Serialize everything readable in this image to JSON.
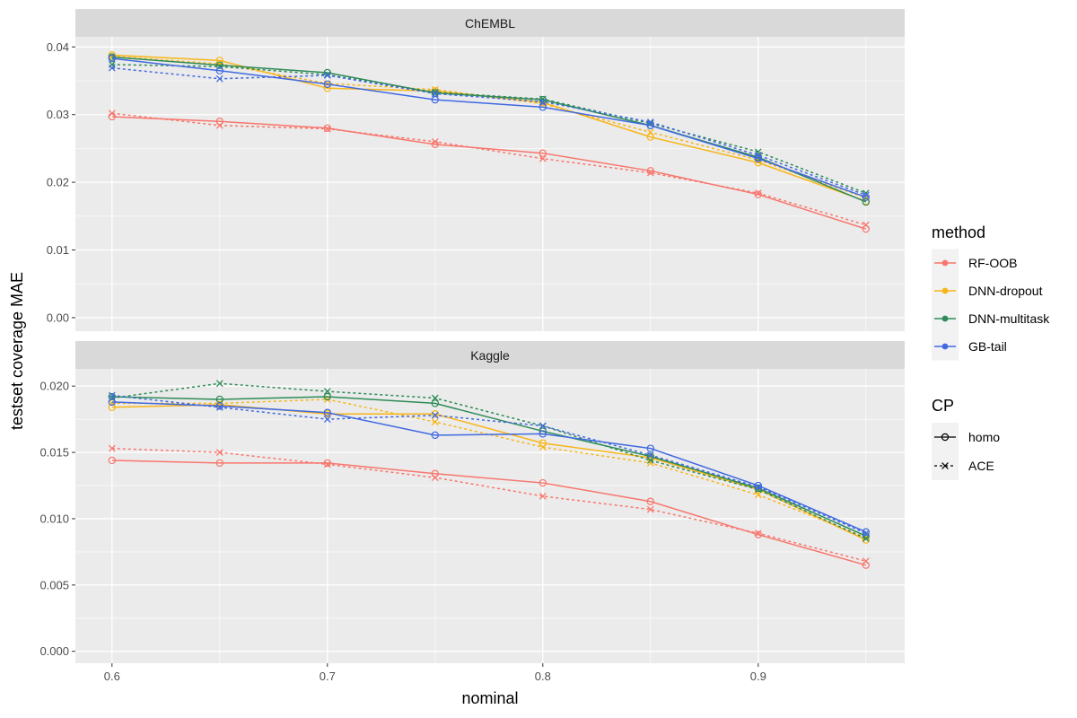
{
  "chart_data": {
    "type": "line",
    "xlabel": "nominal",
    "ylabel": "testset coverage MAE",
    "x": [
      0.6,
      0.65,
      0.7,
      0.75,
      0.8,
      0.85,
      0.9,
      0.95
    ],
    "x_ticks": [
      0.6,
      0.7,
      0.8,
      0.9
    ],
    "x_tick_labels": [
      "0.6",
      "0.7",
      "0.8",
      "0.9"
    ],
    "xlim": [
      0.583,
      0.968
    ],
    "facets": [
      {
        "title": "ChEMBL",
        "ylim": [
          -0.002,
          0.0415
        ],
        "y_ticks": [
          0.0,
          0.01,
          0.02,
          0.03,
          0.04
        ],
        "y_tick_labels": [
          "0.00",
          "0.01",
          "0.02",
          "0.03",
          "0.04"
        ],
        "series": [
          {
            "method": "RF-OOB",
            "cp": "homo",
            "values": [
              0.0297,
              0.029,
              0.028,
              0.0256,
              0.0243,
              0.0217,
              0.0182,
              0.0131
            ]
          },
          {
            "method": "RF-OOB",
            "cp": "ACE",
            "values": [
              0.0302,
              0.0284,
              0.0279,
              0.026,
              0.0235,
              0.0214,
              0.0184,
              0.0137
            ]
          },
          {
            "method": "DNN-dropout",
            "cp": "homo",
            "values": [
              0.0388,
              0.038,
              0.0339,
              0.0335,
              0.0318,
              0.0267,
              0.0229,
              0.0172
            ]
          },
          {
            "method": "DNN-dropout",
            "cp": "ACE",
            "values": [
              0.0386,
              0.0375,
              0.0346,
              0.0337,
              0.0316,
              0.0274,
              0.0233,
              0.0177
            ]
          },
          {
            "method": "DNN-multitask",
            "cp": "homo",
            "values": [
              0.0385,
              0.0373,
              0.0362,
              0.0332,
              0.0322,
              0.0284,
              0.0237,
              0.0171
            ]
          },
          {
            "method": "DNN-multitask",
            "cp": "ACE",
            "values": [
              0.0374,
              0.0371,
              0.0359,
              0.0333,
              0.0323,
              0.0287,
              0.0245,
              0.0184
            ]
          },
          {
            "method": "GB-tail",
            "cp": "homo",
            "values": [
              0.0383,
              0.0365,
              0.0345,
              0.0322,
              0.0311,
              0.0284,
              0.0235,
              0.0178
            ]
          },
          {
            "method": "GB-tail",
            "cp": "ACE",
            "values": [
              0.0369,
              0.0353,
              0.0358,
              0.0331,
              0.0319,
              0.0289,
              0.024,
              0.0181
            ]
          }
        ]
      },
      {
        "title": "Kaggle",
        "ylim": [
          -0.0009,
          0.0213
        ],
        "y_ticks": [
          0.0,
          0.005,
          0.01,
          0.015,
          0.02
        ],
        "y_tick_labels": [
          "0.000",
          "0.005",
          "0.010",
          "0.015",
          "0.020"
        ],
        "series": [
          {
            "method": "RF-OOB",
            "cp": "homo",
            "values": [
              0.0144,
              0.0142,
              0.0142,
              0.0134,
              0.0127,
              0.0113,
              0.0088,
              0.0065
            ]
          },
          {
            "method": "RF-OOB",
            "cp": "ACE",
            "values": [
              0.0153,
              0.015,
              0.0141,
              0.0131,
              0.0117,
              0.0107,
              0.0089,
              0.0068
            ]
          },
          {
            "method": "DNN-dropout",
            "cp": "homo",
            "values": [
              0.0184,
              0.0186,
              0.0179,
              0.0179,
              0.0157,
              0.0146,
              0.0122,
              0.0084
            ]
          },
          {
            "method": "DNN-dropout",
            "cp": "ACE",
            "values": [
              0.0187,
              0.0187,
              0.019,
              0.0173,
              0.0154,
              0.0142,
              0.0118,
              0.0086
            ]
          },
          {
            "method": "DNN-multitask",
            "cp": "homo",
            "values": [
              0.0192,
              0.019,
              0.0192,
              0.0187,
              0.0166,
              0.0147,
              0.0123,
              0.0087
            ]
          },
          {
            "method": "DNN-multitask",
            "cp": "ACE",
            "values": [
              0.0191,
              0.0202,
              0.0196,
              0.0191,
              0.017,
              0.0144,
              0.0122,
              0.0085
            ]
          },
          {
            "method": "GB-tail",
            "cp": "homo",
            "values": [
              0.0188,
              0.0185,
              0.018,
              0.0163,
              0.0164,
              0.0153,
              0.0125,
              0.009
            ]
          },
          {
            "method": "GB-tail",
            "cp": "ACE",
            "values": [
              0.0193,
              0.0184,
              0.0175,
              0.0178,
              0.017,
              0.0148,
              0.0124,
              0.0089
            ]
          }
        ]
      }
    ],
    "legend": {
      "position": "right",
      "method": {
        "title": "method",
        "entries": [
          {
            "label": "RF-OOB",
            "color": "#F8766D"
          },
          {
            "label": "DNN-dropout",
            "color": "#F8B517"
          },
          {
            "label": "DNN-multitask",
            "color": "#2E8B57"
          },
          {
            "label": "GB-tail",
            "color": "#4169E1"
          }
        ]
      },
      "cp": {
        "title": "CP",
        "entries": [
          {
            "label": "homo",
            "linetype": "solid",
            "shape": "circle"
          },
          {
            "label": "ACE",
            "linetype": "dotted",
            "shape": "cross"
          }
        ]
      }
    },
    "style": {
      "panel_bg": "#EBEBEB",
      "strip_bg": "#D9D9D9",
      "grid_color": "#FFFFFF"
    }
  }
}
